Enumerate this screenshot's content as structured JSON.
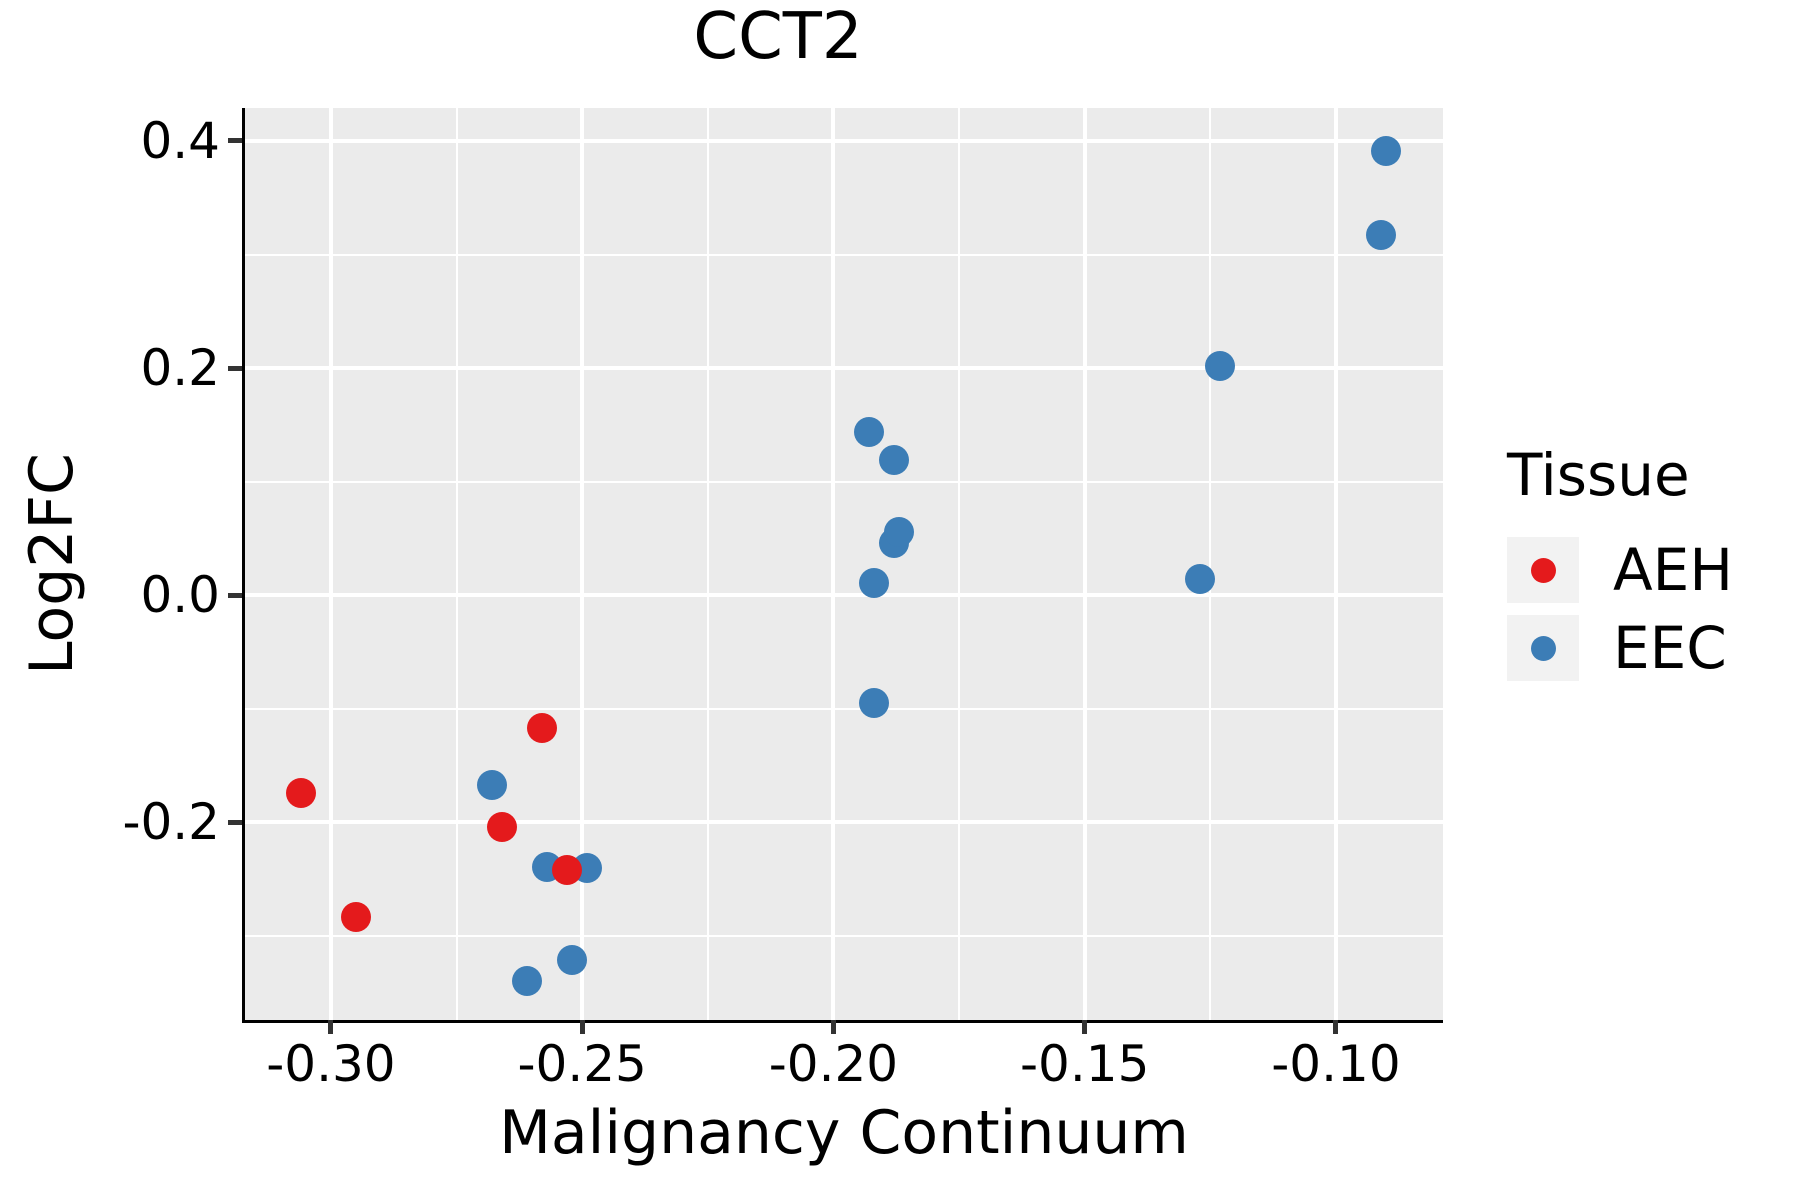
{
  "title": "CCT2",
  "chart_data": {
    "type": "scatter",
    "title": "CCT2",
    "xlabel": "Malignancy Continuum",
    "ylabel": "Log2FC",
    "xlim": [
      -0.3171,
      -0.0787
    ],
    "ylim": [
      -0.374,
      0.429
    ],
    "grid": true,
    "x_ticks": {
      "values": [
        -0.3,
        -0.25,
        -0.2,
        -0.15,
        -0.1
      ],
      "labels": [
        "-0.30",
        "-0.25",
        "-0.20",
        "-0.15",
        "-0.10"
      ]
    },
    "y_ticks": {
      "values": [
        0.4,
        0.2,
        0.0,
        -0.2
      ],
      "labels": [
        "0.4",
        "0.2",
        "0.0",
        "-0.2"
      ]
    },
    "x_minor": [
      -0.275,
      -0.225,
      -0.175,
      -0.125
    ],
    "y_minor": [
      0.3,
      0.1,
      -0.1,
      -0.3
    ],
    "legend": {
      "title": "Tissue",
      "position": "right",
      "entries": [
        "AEH",
        "EEC"
      ]
    },
    "series": [
      {
        "name": "AEH",
        "color": "#E41A1C",
        "points": [
          [
            -0.306,
            -0.174
          ],
          [
            -0.295,
            -0.283
          ],
          [
            -0.266,
            -0.204
          ],
          [
            -0.258,
            -0.117
          ],
          [
            -0.253,
            -0.242
          ]
        ]
      },
      {
        "name": "EEC",
        "color": "#3C7DB6",
        "points": [
          [
            -0.268,
            -0.167
          ],
          [
            -0.261,
            -0.34
          ],
          [
            -0.257,
            -0.239
          ],
          [
            -0.252,
            -0.321
          ],
          [
            -0.249,
            -0.24
          ],
          [
            -0.193,
            0.144
          ],
          [
            -0.192,
            0.011
          ],
          [
            -0.192,
            -0.095
          ],
          [
            -0.188,
            0.119
          ],
          [
            -0.188,
            0.046
          ],
          [
            -0.187,
            0.056
          ],
          [
            -0.127,
            0.014
          ],
          [
            -0.123,
            0.202
          ],
          [
            -0.091,
            0.317
          ],
          [
            -0.09,
            0.391
          ]
        ]
      }
    ],
    "colors": {
      "panel_background": "#EBEBEB",
      "gridline": "#FFFFFF",
      "legend_key_background": "#F2F2F2",
      "axis_line": "#000000",
      "tick_mark": "#333333",
      "text": "#000000"
    }
  }
}
